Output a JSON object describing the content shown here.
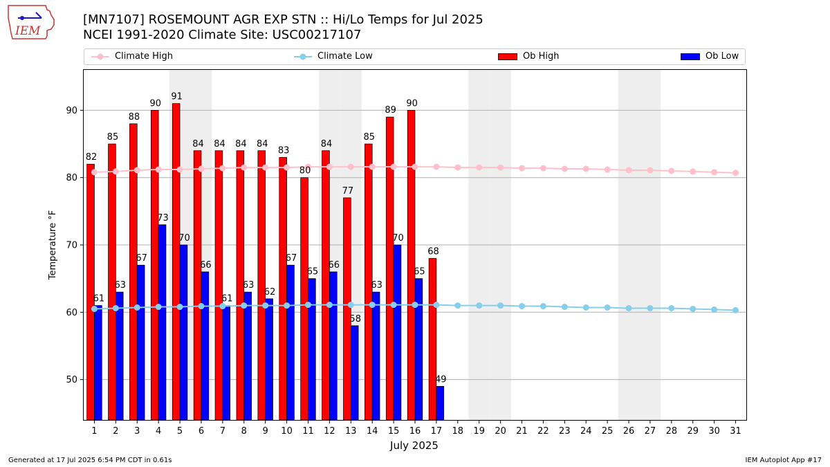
{
  "header": {
    "title_line1": "[MN7107] ROSEMOUNT AGR EXP STN :: Hi/Lo Temps for Jul 2025",
    "title_line2": "NCEI 1991-2020 Climate Site: USC00217107",
    "logo_text": "IEM"
  },
  "footer": {
    "generated": "Generated at 17 Jul 2025 6:54 PM CDT in 0.61s",
    "app": "IEM Autoplot App #17"
  },
  "chart_data": {
    "type": "bar",
    "xlabel": "July 2025",
    "ylabel": "Temperature °F",
    "ylim": [
      44,
      96
    ],
    "xlim": [
      0.5,
      31.5
    ],
    "yticks": [
      50,
      60,
      70,
      80,
      90
    ],
    "grid": "horizontal",
    "legend": "top",
    "weekend_shaded_days": [
      5,
      6,
      12,
      13,
      19,
      20,
      26,
      27
    ],
    "days": [
      1,
      2,
      3,
      4,
      5,
      6,
      7,
      8,
      9,
      10,
      11,
      12,
      13,
      14,
      15,
      16,
      17,
      18,
      19,
      20,
      21,
      22,
      23,
      24,
      25,
      26,
      27,
      28,
      29,
      30,
      31
    ],
    "series": [
      {
        "name": "Climate High",
        "kind": "line",
        "color": "#FFC0CB",
        "values": [
          80.8,
          80.9,
          81.1,
          81.2,
          81.2,
          81.3,
          81.4,
          81.5,
          81.5,
          81.5,
          81.6,
          81.6,
          81.6,
          81.6,
          81.6,
          81.6,
          81.6,
          81.5,
          81.5,
          81.5,
          81.4,
          81.4,
          81.3,
          81.3,
          81.2,
          81.1,
          81.1,
          81.0,
          80.9,
          80.8,
          80.7
        ]
      },
      {
        "name": "Climate Low",
        "kind": "line",
        "color": "#87CEEB",
        "values": [
          60.5,
          60.6,
          60.7,
          60.8,
          60.8,
          60.9,
          60.9,
          61.0,
          61.0,
          61.0,
          61.1,
          61.1,
          61.1,
          61.1,
          61.1,
          61.1,
          61.1,
          61.0,
          61.0,
          61.0,
          60.9,
          60.9,
          60.8,
          60.7,
          60.7,
          60.6,
          60.6,
          60.6,
          60.5,
          60.4,
          60.3
        ]
      },
      {
        "name": "Ob High",
        "kind": "bar",
        "color": "#FF0000",
        "values": [
          82,
          85,
          88,
          90,
          91,
          84,
          84,
          84,
          84,
          83,
          80,
          84,
          77,
          85,
          89,
          90,
          68
        ]
      },
      {
        "name": "Ob Low",
        "kind": "bar",
        "color": "#0000FF",
        "values": [
          61,
          63,
          67,
          73,
          70,
          66,
          61,
          63,
          62,
          67,
          65,
          66,
          58,
          63,
          70,
          65,
          49
        ]
      }
    ]
  }
}
